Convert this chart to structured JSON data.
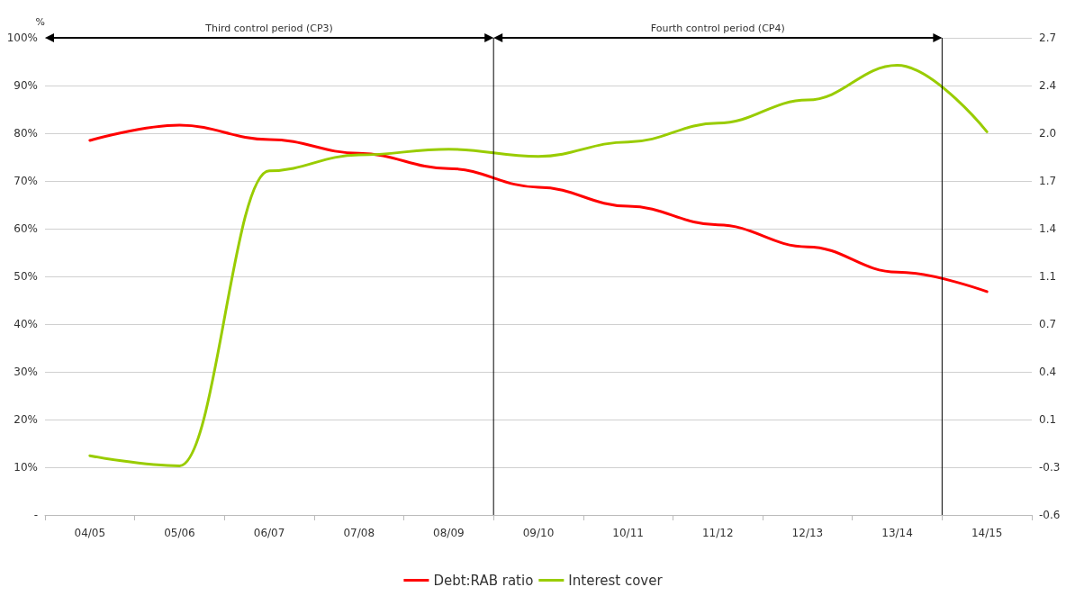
{
  "chart_data": {
    "type": "line",
    "ylabel": "%",
    "categories": [
      "04/05",
      "05/06",
      "06/07",
      "07/08",
      "08/09",
      "09/10",
      "10/11",
      "11/12",
      "12/13",
      "13/14",
      "14/15"
    ],
    "series": [
      {
        "name": "Debt:RAB ratio",
        "color": "#ff0000",
        "values": [
          78.5,
          81.7,
          78.7,
          75.8,
          72.6,
          68.7,
          64.7,
          60.8,
          56.2,
          50.9,
          46.8
        ]
      },
      {
        "name": "Interest cover",
        "color": "#99cc00",
        "axis": "y2",
        "values": [
          -0.19,
          -0.26,
          1.78,
          1.89,
          1.93,
          1.88,
          1.98,
          2.11,
          2.27,
          2.51,
          2.05
        ]
      }
    ],
    "ylim": [
      0,
      100
    ],
    "yticks": [
      {
        "value": 0,
        "label": "-"
      },
      {
        "value": 10,
        "label": "10%"
      },
      {
        "value": 20,
        "label": "20%"
      },
      {
        "value": 30,
        "label": "30%"
      },
      {
        "value": 40,
        "label": "40%"
      },
      {
        "value": 50,
        "label": "50%"
      },
      {
        "value": 60,
        "label": "60%"
      },
      {
        "value": 70,
        "label": "70%"
      },
      {
        "value": 80,
        "label": "80%"
      },
      {
        "value": 90,
        "label": "90%"
      },
      {
        "value": 100,
        "label": "100%"
      }
    ],
    "y2lim": [
      -0.6,
      2.7
    ],
    "y2ticks": [
      -0.6,
      {
        "value": -0.27,
        "label": "-0.3"
      },
      {
        "value": 0.06,
        "label": "0.1"
      },
      {
        "value": 0.39,
        "label": "0.4"
      },
      {
        "value": 0.72,
        "label": "0.7"
      },
      {
        "value": 1.05,
        "label": "1.1"
      },
      {
        "value": 1.38,
        "label": "1.4"
      },
      {
        "value": 1.71,
        "label": "1.7"
      },
      {
        "value": 2.04,
        "label": "2.0"
      },
      {
        "value": 2.37,
        "label": "2.4"
      },
      2.7
    ],
    "annotations": [
      "Third control period (CP3)",
      "Fourth control period (CP4)"
    ],
    "grid": "y",
    "legend": "bottom",
    "marker": "none",
    "line_style": "solid"
  }
}
